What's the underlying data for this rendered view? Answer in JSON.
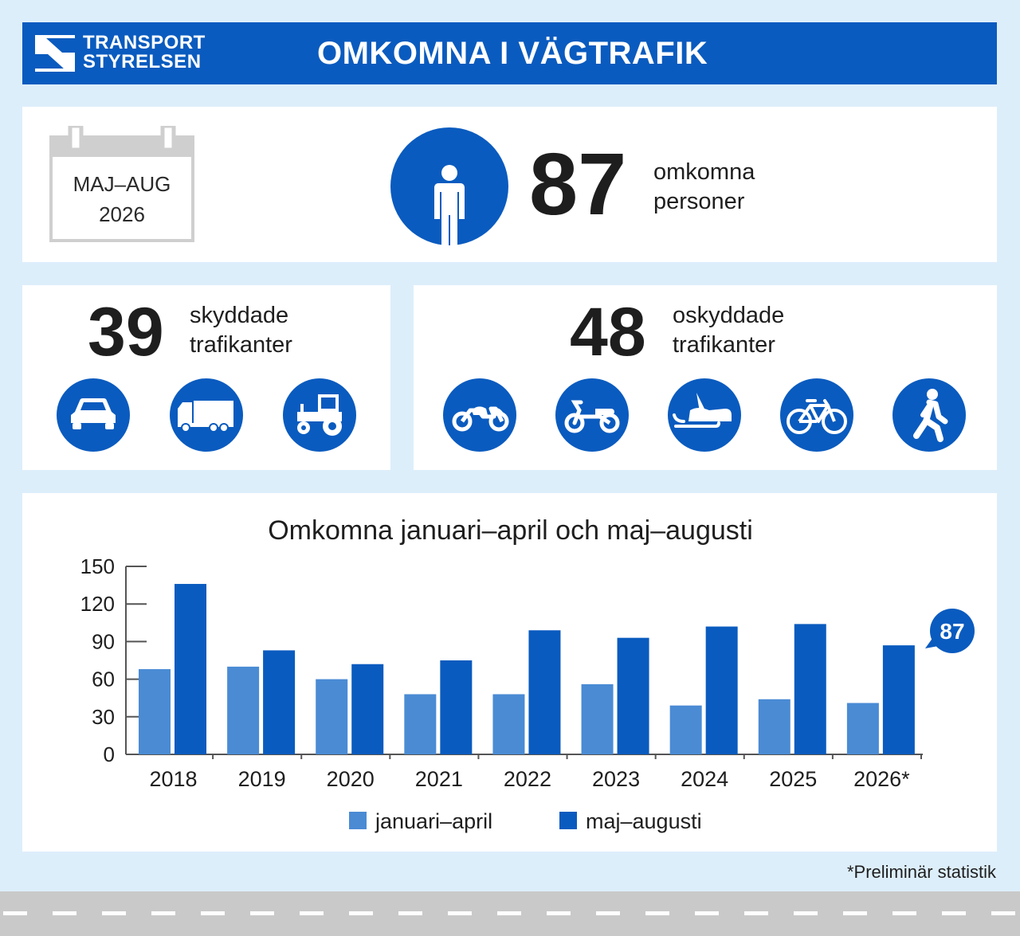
{
  "header": {
    "logo_line1": "TRANSPORT",
    "logo_line2": "STYRELSEN",
    "title": "OMKOMNA I VÄGTRAFIK"
  },
  "period": {
    "line1": "MAJ–AUG",
    "line2": "2026"
  },
  "total": {
    "value": "87",
    "label_line1": "omkomna",
    "label_line2": "personer"
  },
  "protected": {
    "value": "39",
    "label_line1": "skyddade",
    "label_line2": "trafikanter",
    "icons": [
      "car-icon",
      "truck-icon",
      "tractor-icon"
    ]
  },
  "unprotected": {
    "value": "48",
    "label_line1": "oskyddade",
    "label_line2": "trafikanter",
    "icons": [
      "motorcycle-icon",
      "moped-icon",
      "snowmobile-icon",
      "bicycle-icon",
      "pedestrian-icon"
    ]
  },
  "chart_data": {
    "type": "bar",
    "title": "Omkomna januari–april och maj–augusti",
    "categories": [
      "2018",
      "2019",
      "2020",
      "2021",
      "2022",
      "2023",
      "2024",
      "2025",
      "2026*"
    ],
    "series": [
      {
        "name": "januari–april",
        "color": "#4a8bd4",
        "values": [
          68,
          70,
          60,
          48,
          48,
          56,
          39,
          44,
          41
        ]
      },
      {
        "name": "maj–augusti",
        "color": "#0a5bbf",
        "values": [
          136,
          83,
          72,
          75,
          99,
          93,
          102,
          104,
          87
        ]
      }
    ],
    "yticks": [
      0,
      30,
      60,
      90,
      120,
      150
    ],
    "ylim": [
      0,
      150
    ],
    "callout": "87",
    "legend_position": "bottom-center"
  },
  "footnote": "*Preliminär statistik",
  "colors": {
    "brand": "#0a5bbf",
    "light": "#4a8bd4",
    "background": "#ddeefb"
  }
}
